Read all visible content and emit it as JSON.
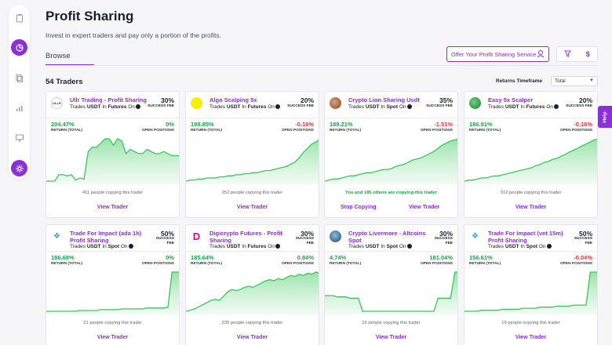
{
  "page": {
    "title": "Profit Sharing",
    "subtitle": "Invest in expert traders and pay only a portion of the profits.",
    "tab": "Browse",
    "offer_button": "Offer Your Profit Sharing Service",
    "traders_count": "54 Traders",
    "returns_timeframe_label": "Returns Timeframe",
    "returns_timeframe_value": "Total",
    "help_label": "Help",
    "filter_icon": "filter-icon",
    "dollar_icon": "dollar-icon"
  },
  "nav": [
    "clipboard-icon",
    "pie-chart-icon",
    "copy-icon",
    "bar-chart-icon",
    "monitor-icon",
    "settings-icon"
  ],
  "labels": {
    "success_fee_line1": "SUCCESS FEE",
    "success": "SUCCESS",
    "fee": "FEE",
    "return_total": "RETURN (TOTAL)",
    "open_positions": "OPEN POSITIONS",
    "trades": "Trades",
    "in": "In",
    "on": "On",
    "view_trader": "View Trader",
    "stop_copying": "Stop Copying"
  },
  "traders": [
    {
      "name": "Ullr Trading - Profit Sharing",
      "quote": "USDT",
      "market": "Futures",
      "fee": "30%",
      "return": "204.47%",
      "open": "0%",
      "open_sign": "pos",
      "copying": "411 people copying this trader",
      "me": false,
      "avatar": "av1",
      "avatar_text": "ULLR",
      "series": [
        2,
        2,
        2,
        8,
        8,
        7,
        8,
        3,
        5,
        4,
        30,
        34,
        34,
        38,
        42,
        42,
        36,
        42,
        40,
        28,
        32,
        30,
        28,
        28,
        32,
        30,
        28,
        28,
        30,
        28,
        26,
        26,
        26
      ]
    },
    {
      "name": "Algo Scalping 5x",
      "quote": "USDT",
      "market": "Futures",
      "fee": "20%",
      "return": "199.85%",
      "open": "-0.16%",
      "open_sign": "neg",
      "copying": "252 people copying this trader",
      "me": false,
      "avatar": "av2",
      "avatar_text": "",
      "series": [
        0,
        1,
        1,
        2,
        2,
        3,
        3,
        3,
        4,
        4,
        5,
        5,
        6,
        6,
        7,
        7,
        8,
        8,
        9,
        10,
        10,
        11,
        12,
        13,
        14,
        16,
        18,
        22,
        27,
        31,
        35,
        37,
        40
      ]
    },
    {
      "name": "Crypto Lion Sharing Usdt",
      "quote": "USDT",
      "market": "Spot",
      "fee": "35%",
      "return": "189.21%",
      "open": "-1.51%",
      "open_sign": "neg",
      "copying": "You and 185 others are copying this trader",
      "me": true,
      "avatar": "av3",
      "avatar_text": "",
      "series": [
        0,
        1,
        2,
        2,
        3,
        4,
        5,
        5,
        6,
        7,
        8,
        8,
        9,
        10,
        11,
        11,
        12,
        14,
        15,
        16,
        18,
        20,
        21,
        22,
        24,
        26,
        28,
        31,
        34,
        36,
        38,
        39,
        40
      ]
    },
    {
      "name": "Easy 5x Scalper",
      "quote": "USDT",
      "market": "Futures",
      "fee": "20%",
      "return": "186.91%",
      "open": "-0.16%",
      "open_sign": "neg",
      "copying": "312 people copying this trader",
      "me": false,
      "avatar": "av4",
      "avatar_text": "",
      "series": [
        0,
        1,
        1,
        2,
        3,
        3,
        4,
        5,
        5,
        6,
        7,
        8,
        9,
        10,
        11,
        12,
        13,
        15,
        16,
        18,
        19,
        21,
        22,
        24,
        26,
        28,
        30,
        32,
        34,
        36,
        38,
        40,
        41
      ]
    },
    {
      "name": "Trade For Impact (ada 1h) Profit Sharing",
      "quote": "USDT",
      "market": "Spot",
      "fee": "50%",
      "return": "186.68%",
      "open": "0%",
      "open_sign": "pos",
      "copying": "21 people copying this trader",
      "me": false,
      "avatar": "av5",
      "avatar_text": "❖",
      "series": [
        0,
        0,
        0,
        0,
        0,
        0,
        0,
        0,
        1,
        1,
        1,
        1,
        1,
        2,
        2,
        2,
        2,
        2,
        3,
        3,
        3,
        3,
        3,
        3,
        4,
        4,
        4,
        4,
        4,
        5,
        48,
        48,
        48
      ]
    },
    {
      "name": "Digicrypto Futures - Profit Sharing",
      "quote": "USDT",
      "market": "Futures",
      "fee": "30%",
      "return": "185.64%",
      "open": "0.84%",
      "open_sign": "pos",
      "copying": "235 people copying this trader",
      "me": false,
      "avatar": "av6",
      "avatar_text": "D",
      "series": [
        2,
        3,
        4,
        6,
        8,
        10,
        12,
        13,
        12,
        16,
        20,
        22,
        21,
        22,
        24,
        25,
        24,
        26,
        28,
        30,
        31,
        30,
        32,
        31,
        33,
        35,
        34,
        36,
        35,
        37,
        36,
        38,
        37
      ]
    },
    {
      "name": "Crypto Livermore - Altcoins Spot",
      "quote": "USDT",
      "market": "Spot",
      "fee": "30%",
      "return": "4.74%",
      "open": "181.04%",
      "open_sign": "pos",
      "copying": "16 people copying this trader",
      "me": false,
      "avatar": "av7",
      "avatar_text": "",
      "series": [
        22,
        22,
        22,
        21,
        21,
        21,
        20,
        20,
        20,
        10,
        10,
        10,
        10,
        10,
        10,
        10,
        10,
        10,
        10,
        10,
        10,
        10,
        10,
        10,
        10,
        10,
        10,
        20,
        20,
        20,
        20,
        40,
        40
      ]
    },
    {
      "name": "Trade For Impact (vet 15m) Profit Sharing",
      "quote": "USDT",
      "market": "Spot",
      "fee": "50%",
      "return": "156.61%",
      "open": "-0.04%",
      "open_sign": "neg",
      "copying": "19 people copying this trader",
      "me": false,
      "avatar": "av5",
      "avatar_text": "❖",
      "series": [
        0,
        0,
        0,
        0,
        1,
        1,
        1,
        1,
        1,
        2,
        2,
        2,
        2,
        2,
        3,
        3,
        3,
        3,
        4,
        4,
        4,
        4,
        5,
        5,
        5,
        5,
        6,
        6,
        6,
        6,
        38,
        38,
        38
      ]
    }
  ],
  "colors": {
    "accent": "#8b2fd9",
    "positive": "#25a244",
    "negative": "#e53935",
    "chart_line": "#3ec45c"
  }
}
